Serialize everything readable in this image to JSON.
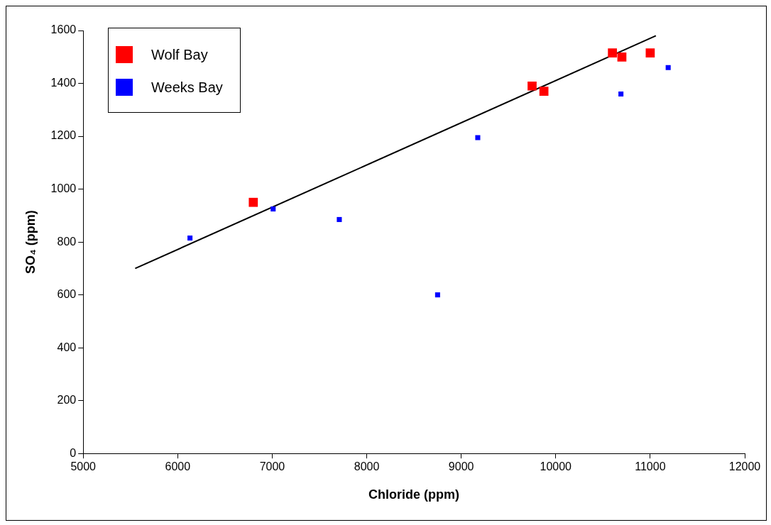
{
  "chart_data": {
    "type": "scatter",
    "xlabel": "Chloride (ppm)",
    "ylabel": "SO₄ (ppm)",
    "xlim": [
      5000,
      12000
    ],
    "xticks": [
      5000,
      6000,
      7000,
      8000,
      9000,
      10000,
      11000,
      12000
    ],
    "ylim": [
      0,
      1600
    ],
    "yticks": [
      0,
      200,
      400,
      600,
      800,
      1000,
      1200,
      1400,
      1600
    ],
    "grid": false,
    "legend": "top left",
    "marker": "square",
    "series": [
      {
        "name": "Wolf Bay",
        "color": "#ff0000",
        "x": [
          6800,
          9750,
          9875,
          10600,
          10700,
          11000
        ],
        "values": [
          950,
          1390,
          1370,
          1515,
          1500,
          1515
        ]
      },
      {
        "name": "Weeks Bay",
        "color": "#0000ff",
        "x": [
          6130,
          7010,
          7710,
          8750,
          9175,
          10690,
          11190
        ],
        "values": [
          815,
          925,
          885,
          600,
          1195,
          1360,
          1460
        ]
      },
      {
        "type": "line",
        "color": "#000000",
        "marker": "none",
        "x": [
          5550,
          11060
        ],
        "values": [
          700,
          1580
        ]
      }
    ]
  }
}
